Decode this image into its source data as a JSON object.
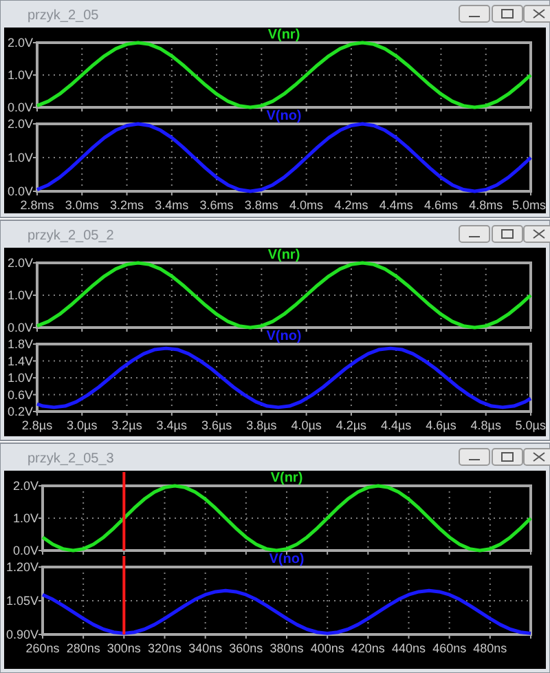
{
  "chart_data": [
    {
      "type": "line",
      "title": "przyk_2_05",
      "x": [
        2.8,
        2.85,
        2.9,
        2.95,
        3,
        3.05,
        3.1,
        3.15,
        3.2,
        3.25,
        3.3,
        3.35,
        3.4,
        3.45,
        3.5,
        3.55,
        3.6,
        3.65,
        3.7,
        3.75,
        3.8,
        3.85,
        3.9,
        3.95,
        4,
        4.05,
        4.1,
        4.15,
        4.2,
        4.25,
        4.3,
        4.35,
        4.4,
        4.45,
        4.5,
        4.55,
        4.6,
        4.65,
        4.7,
        4.75,
        4.8,
        4.85,
        4.9,
        4.95,
        5
      ],
      "series": [
        {
          "name": "V(nr)",
          "color": "#22e022",
          "values": [
            0.05,
            0.19,
            0.41,
            0.69,
            1,
            1.31,
            1.59,
            1.81,
            1.95,
            2,
            1.95,
            1.81,
            1.59,
            1.31,
            1,
            0.69,
            0.41,
            0.19,
            0.05,
            0,
            0.05,
            0.19,
            0.41,
            0.69,
            1,
            1.31,
            1.59,
            1.81,
            1.95,
            2,
            1.95,
            1.81,
            1.59,
            1.31,
            1,
            0.69,
            0.41,
            0.19,
            0.05,
            0,
            0.05,
            0.19,
            0.41,
            0.69,
            1
          ]
        }
      ],
      "xlim": [
        2.8,
        5
      ],
      "xticks": [
        {
          "value": 2.8,
          "label": null
        },
        {
          "value": 3,
          "label": null
        },
        {
          "value": 3.2,
          "label": null
        },
        {
          "value": 3.4,
          "label": null
        },
        {
          "value": 3.6,
          "label": null
        },
        {
          "value": 3.8,
          "label": null
        },
        {
          "value": 4,
          "label": null
        },
        {
          "value": 4.2,
          "label": null
        },
        {
          "value": 4.4,
          "label": null
        },
        {
          "value": 4.6,
          "label": null
        },
        {
          "value": 4.8,
          "label": null
        },
        {
          "value": 5,
          "label": null
        }
      ],
      "ylim": [
        0,
        2
      ],
      "yticks": [
        {
          "value": 0,
          "label": "0.0V"
        },
        {
          "value": 1,
          "label": "1.0V"
        },
        {
          "value": 2,
          "label": "2.0V"
        }
      ],
      "grid": true,
      "tick_labels": "y"
    },
    {
      "type": "line",
      "x": [
        2.8,
        2.85,
        2.9,
        2.95,
        3,
        3.05,
        3.1,
        3.15,
        3.2,
        3.25,
        3.3,
        3.35,
        3.4,
        3.45,
        3.5,
        3.55,
        3.6,
        3.65,
        3.7,
        3.75,
        3.8,
        3.85,
        3.9,
        3.95,
        4,
        4.05,
        4.1,
        4.15,
        4.2,
        4.25,
        4.3,
        4.35,
        4.4,
        4.45,
        4.5,
        4.55,
        4.6,
        4.65,
        4.7,
        4.75,
        4.8,
        4.85,
        4.9,
        4.95,
        5
      ],
      "series": [
        {
          "name": "V(no)",
          "color": "#1a1aff",
          "values": [
            0.05,
            0.19,
            0.41,
            0.69,
            1,
            1.31,
            1.59,
            1.81,
            1.95,
            2,
            1.95,
            1.81,
            1.59,
            1.31,
            1,
            0.69,
            0.41,
            0.19,
            0.05,
            0,
            0.05,
            0.19,
            0.41,
            0.69,
            1,
            1.31,
            1.59,
            1.81,
            1.95,
            2,
            1.95,
            1.81,
            1.59,
            1.31,
            1,
            0.69,
            0.41,
            0.19,
            0.05,
            0,
            0.05,
            0.19,
            0.41,
            0.69,
            1
          ]
        }
      ],
      "xlim": [
        2.8,
        5
      ],
      "xticks": [
        {
          "value": 2.8,
          "label": "2.8ms"
        },
        {
          "value": 3,
          "label": "3.0ms"
        },
        {
          "value": 3.2,
          "label": "3.2ms"
        },
        {
          "value": 3.4,
          "label": "3.4ms"
        },
        {
          "value": 3.6,
          "label": "3.6ms"
        },
        {
          "value": 3.8,
          "label": "3.8ms"
        },
        {
          "value": 4,
          "label": "4.0ms"
        },
        {
          "value": 4.2,
          "label": "4.2ms"
        },
        {
          "value": 4.4,
          "label": "4.4ms"
        },
        {
          "value": 4.6,
          "label": "4.6ms"
        },
        {
          "value": 4.8,
          "label": "4.8ms"
        },
        {
          "value": 5,
          "label": "5.0ms"
        }
      ],
      "ylim": [
        0,
        2
      ],
      "yticks": [
        {
          "value": 0,
          "label": "0.0V"
        },
        {
          "value": 1,
          "label": "1.0V"
        },
        {
          "value": 2,
          "label": "2.0V"
        }
      ],
      "grid": true
    },
    {
      "type": "line",
      "title": "przyk_2_05_2",
      "x": [
        2.8,
        2.85,
        2.9,
        2.95,
        3,
        3.05,
        3.1,
        3.15,
        3.2,
        3.25,
        3.3,
        3.35,
        3.4,
        3.45,
        3.5,
        3.55,
        3.6,
        3.65,
        3.7,
        3.75,
        3.8,
        3.85,
        3.9,
        3.95,
        4,
        4.05,
        4.1,
        4.15,
        4.2,
        4.25,
        4.3,
        4.35,
        4.4,
        4.45,
        4.5,
        4.55,
        4.6,
        4.65,
        4.7,
        4.75,
        4.8,
        4.85,
        4.9,
        4.95,
        5
      ],
      "series": [
        {
          "name": "V(nr)",
          "color": "#22e022",
          "values": [
            0.05,
            0.19,
            0.41,
            0.69,
            1,
            1.31,
            1.59,
            1.81,
            1.95,
            2,
            1.95,
            1.81,
            1.59,
            1.31,
            1,
            0.69,
            0.41,
            0.19,
            0.05,
            0,
            0.05,
            0.19,
            0.41,
            0.69,
            1,
            1.31,
            1.59,
            1.81,
            1.95,
            2,
            1.95,
            1.81,
            1.59,
            1.31,
            1,
            0.69,
            0.41,
            0.19,
            0.05,
            0,
            0.05,
            0.19,
            0.41,
            0.69,
            1
          ]
        }
      ],
      "xlim": [
        2.8,
        5
      ],
      "xticks": [
        {
          "value": 2.8,
          "label": null
        },
        {
          "value": 3,
          "label": null
        },
        {
          "value": 3.2,
          "label": null
        },
        {
          "value": 3.4,
          "label": null
        },
        {
          "value": 3.6,
          "label": null
        },
        {
          "value": 3.8,
          "label": null
        },
        {
          "value": 4,
          "label": null
        },
        {
          "value": 4.2,
          "label": null
        },
        {
          "value": 4.4,
          "label": null
        },
        {
          "value": 4.6,
          "label": null
        },
        {
          "value": 4.8,
          "label": null
        },
        {
          "value": 5,
          "label": null
        }
      ],
      "ylim": [
        0,
        2
      ],
      "yticks": [
        {
          "value": 0,
          "label": "0.0V"
        },
        {
          "value": 1,
          "label": "1.0V"
        },
        {
          "value": 2,
          "label": "2.0V"
        }
      ],
      "grid": true,
      "tick_labels": "y"
    },
    {
      "type": "line",
      "x": [
        2.8,
        2.825,
        2.875,
        2.925,
        2.975,
        3.025,
        3.075,
        3.125,
        3.175,
        3.225,
        3.275,
        3.325,
        3.375,
        3.425,
        3.475,
        3.525,
        3.575,
        3.625,
        3.675,
        3.725,
        3.775,
        3.825,
        3.875,
        3.925,
        3.975,
        4.025,
        4.075,
        4.125,
        4.175,
        4.225,
        4.275,
        4.325,
        4.375,
        4.425,
        4.475,
        4.525,
        4.575,
        4.625,
        4.675,
        4.725,
        4.775,
        4.825,
        4.875,
        4.925,
        4.975,
        5
      ],
      "series": [
        {
          "name": "V(no)",
          "color": "#1a1aff",
          "values": [
            0.38,
            0.33,
            0.3,
            0.33,
            0.43,
            0.59,
            0.78,
            1.0,
            1.22,
            1.41,
            1.57,
            1.67,
            1.7,
            1.67,
            1.57,
            1.41,
            1.22,
            1.0,
            0.78,
            0.59,
            0.43,
            0.33,
            0.3,
            0.33,
            0.43,
            0.59,
            0.78,
            1.0,
            1.22,
            1.41,
            1.57,
            1.67,
            1.7,
            1.67,
            1.57,
            1.41,
            1.22,
            1.0,
            0.78,
            0.59,
            0.43,
            0.33,
            0.3,
            0.33,
            0.43,
            0.51
          ]
        }
      ],
      "xlim": [
        2.8,
        5
      ],
      "xticks": [
        {
          "value": 2.8,
          "label": "2.8µs"
        },
        {
          "value": 3,
          "label": "3.0µs"
        },
        {
          "value": 3.2,
          "label": "3.2µs"
        },
        {
          "value": 3.4,
          "label": "3.4µs"
        },
        {
          "value": 3.6,
          "label": "3.6µs"
        },
        {
          "value": 3.8,
          "label": "3.8µs"
        },
        {
          "value": 4,
          "label": "4.0µs"
        },
        {
          "value": 4.2,
          "label": "4.2µs"
        },
        {
          "value": 4.4,
          "label": "4.4µs"
        },
        {
          "value": 4.6,
          "label": "4.6µs"
        },
        {
          "value": 4.8,
          "label": "4.8µs"
        },
        {
          "value": 5,
          "label": "5.0µs"
        }
      ],
      "ylim": [
        0.2,
        1.8
      ],
      "yticks": [
        {
          "value": 0.2,
          "label": "0.2V"
        },
        {
          "value": 0.6,
          "label": "0.6V"
        },
        {
          "value": 1,
          "label": "1.0V"
        },
        {
          "value": 1.4,
          "label": "1.4V"
        },
        {
          "value": 1.8,
          "label": "1.8V"
        }
      ],
      "grid": true
    },
    {
      "type": "line",
      "title": "przyk_2_05_3",
      "x": [
        260,
        265,
        270,
        275,
        280,
        285,
        290,
        295,
        300,
        305,
        310,
        315,
        320,
        325,
        330,
        335,
        340,
        345,
        350,
        355,
        360,
        365,
        370,
        375,
        380,
        385,
        390,
        395,
        400,
        405,
        410,
        415,
        420,
        425,
        430,
        435,
        440,
        445,
        450,
        455,
        460,
        465,
        470,
        475,
        480,
        485,
        490,
        495,
        500
      ],
      "series": [
        {
          "name": "V(nr)",
          "color": "#22e022",
          "values": [
            0.41,
            0.19,
            0.05,
            0,
            0.05,
            0.19,
            0.41,
            0.69,
            1,
            1.31,
            1.59,
            1.81,
            1.95,
            2,
            1.95,
            1.81,
            1.59,
            1.31,
            1,
            0.69,
            0.41,
            0.19,
            0.05,
            0,
            0.05,
            0.19,
            0.41,
            0.69,
            1,
            1.31,
            1.59,
            1.81,
            1.95,
            2,
            1.95,
            1.81,
            1.59,
            1.31,
            1,
            0.69,
            0.41,
            0.19,
            0.05,
            0,
            0.05,
            0.19,
            0.41,
            0.69,
            1
          ]
        }
      ],
      "xlim": [
        260,
        500
      ],
      "xticks": [
        {
          "value": 260,
          "label": null
        },
        {
          "value": 280,
          "label": null
        },
        {
          "value": 300,
          "label": null
        },
        {
          "value": 320,
          "label": null
        },
        {
          "value": 340,
          "label": null
        },
        {
          "value": 360,
          "label": null
        },
        {
          "value": 380,
          "label": null
        },
        {
          "value": 400,
          "label": null
        },
        {
          "value": 420,
          "label": null
        },
        {
          "value": 440,
          "label": null
        },
        {
          "value": 460,
          "label": null
        },
        {
          "value": 480,
          "label": null
        },
        {
          "value": 500,
          "label": null
        }
      ],
      "ylim": [
        0,
        2
      ],
      "yticks": [
        {
          "value": 0,
          "label": "0.0V"
        },
        {
          "value": 1,
          "label": "1.0V"
        },
        {
          "value": 2,
          "label": "2.0V"
        }
      ],
      "grid": true,
      "tick_labels": "y",
      "ref_lines": [
        {
          "axis": "x",
          "value": 300,
          "color": "#ff1a1a"
        }
      ]
    },
    {
      "type": "line",
      "x": [
        260,
        265,
        270,
        275,
        280,
        285,
        290,
        295,
        300,
        305,
        310,
        315,
        320,
        325,
        330,
        335,
        340,
        345,
        350,
        355,
        360,
        365,
        370,
        375,
        380,
        385,
        390,
        395,
        400,
        405,
        410,
        415,
        420,
        425,
        430,
        435,
        440,
        445,
        450,
        455,
        460,
        465,
        470,
        475,
        480,
        485,
        490,
        495,
        500
      ],
      "series": [
        {
          "name": "V(no)",
          "color": "#1a1aff",
          "values": [
            1.077,
            1.056,
            1.029,
            1.0,
            0.971,
            0.944,
            0.923,
            0.91,
            0.905,
            0.91,
            0.923,
            0.944,
            0.971,
            1.0,
            1.029,
            1.056,
            1.077,
            1.09,
            1.095,
            1.09,
            1.077,
            1.056,
            1.029,
            1.0,
            0.971,
            0.944,
            0.923,
            0.91,
            0.905,
            0.91,
            0.923,
            0.944,
            0.971,
            1.0,
            1.029,
            1.056,
            1.077,
            1.09,
            1.095,
            1.09,
            1.077,
            1.056,
            1.029,
            1.0,
            0.971,
            0.944,
            0.923,
            0.91,
            0.905
          ]
        }
      ],
      "xlim": [
        260,
        500
      ],
      "xticks": [
        {
          "value": 260,
          "label": "260ns"
        },
        {
          "value": 280,
          "label": "280ns"
        },
        {
          "value": 300,
          "label": "300ns"
        },
        {
          "value": 320,
          "label": "320ns"
        },
        {
          "value": 340,
          "label": "340ns"
        },
        {
          "value": 360,
          "label": "360ns"
        },
        {
          "value": 380,
          "label": "380ns"
        },
        {
          "value": 400,
          "label": "400ns"
        },
        {
          "value": 420,
          "label": "420ns"
        },
        {
          "value": 440,
          "label": "440ns"
        },
        {
          "value": 460,
          "label": "460ns"
        },
        {
          "value": 480,
          "label": "480ns"
        },
        {
          "value": 500,
          "label": null
        }
      ],
      "ylim": [
        0.9,
        1.2
      ],
      "yticks": [
        {
          "value": 0.9,
          "label": "0.90V"
        },
        {
          "value": 1.05,
          "label": "1.05V"
        },
        {
          "value": 1.2,
          "label": "1.20V"
        }
      ],
      "grid": true,
      "ref_lines": [
        {
          "axis": "x",
          "value": 300,
          "color": "#ff1a1a"
        }
      ]
    }
  ]
}
